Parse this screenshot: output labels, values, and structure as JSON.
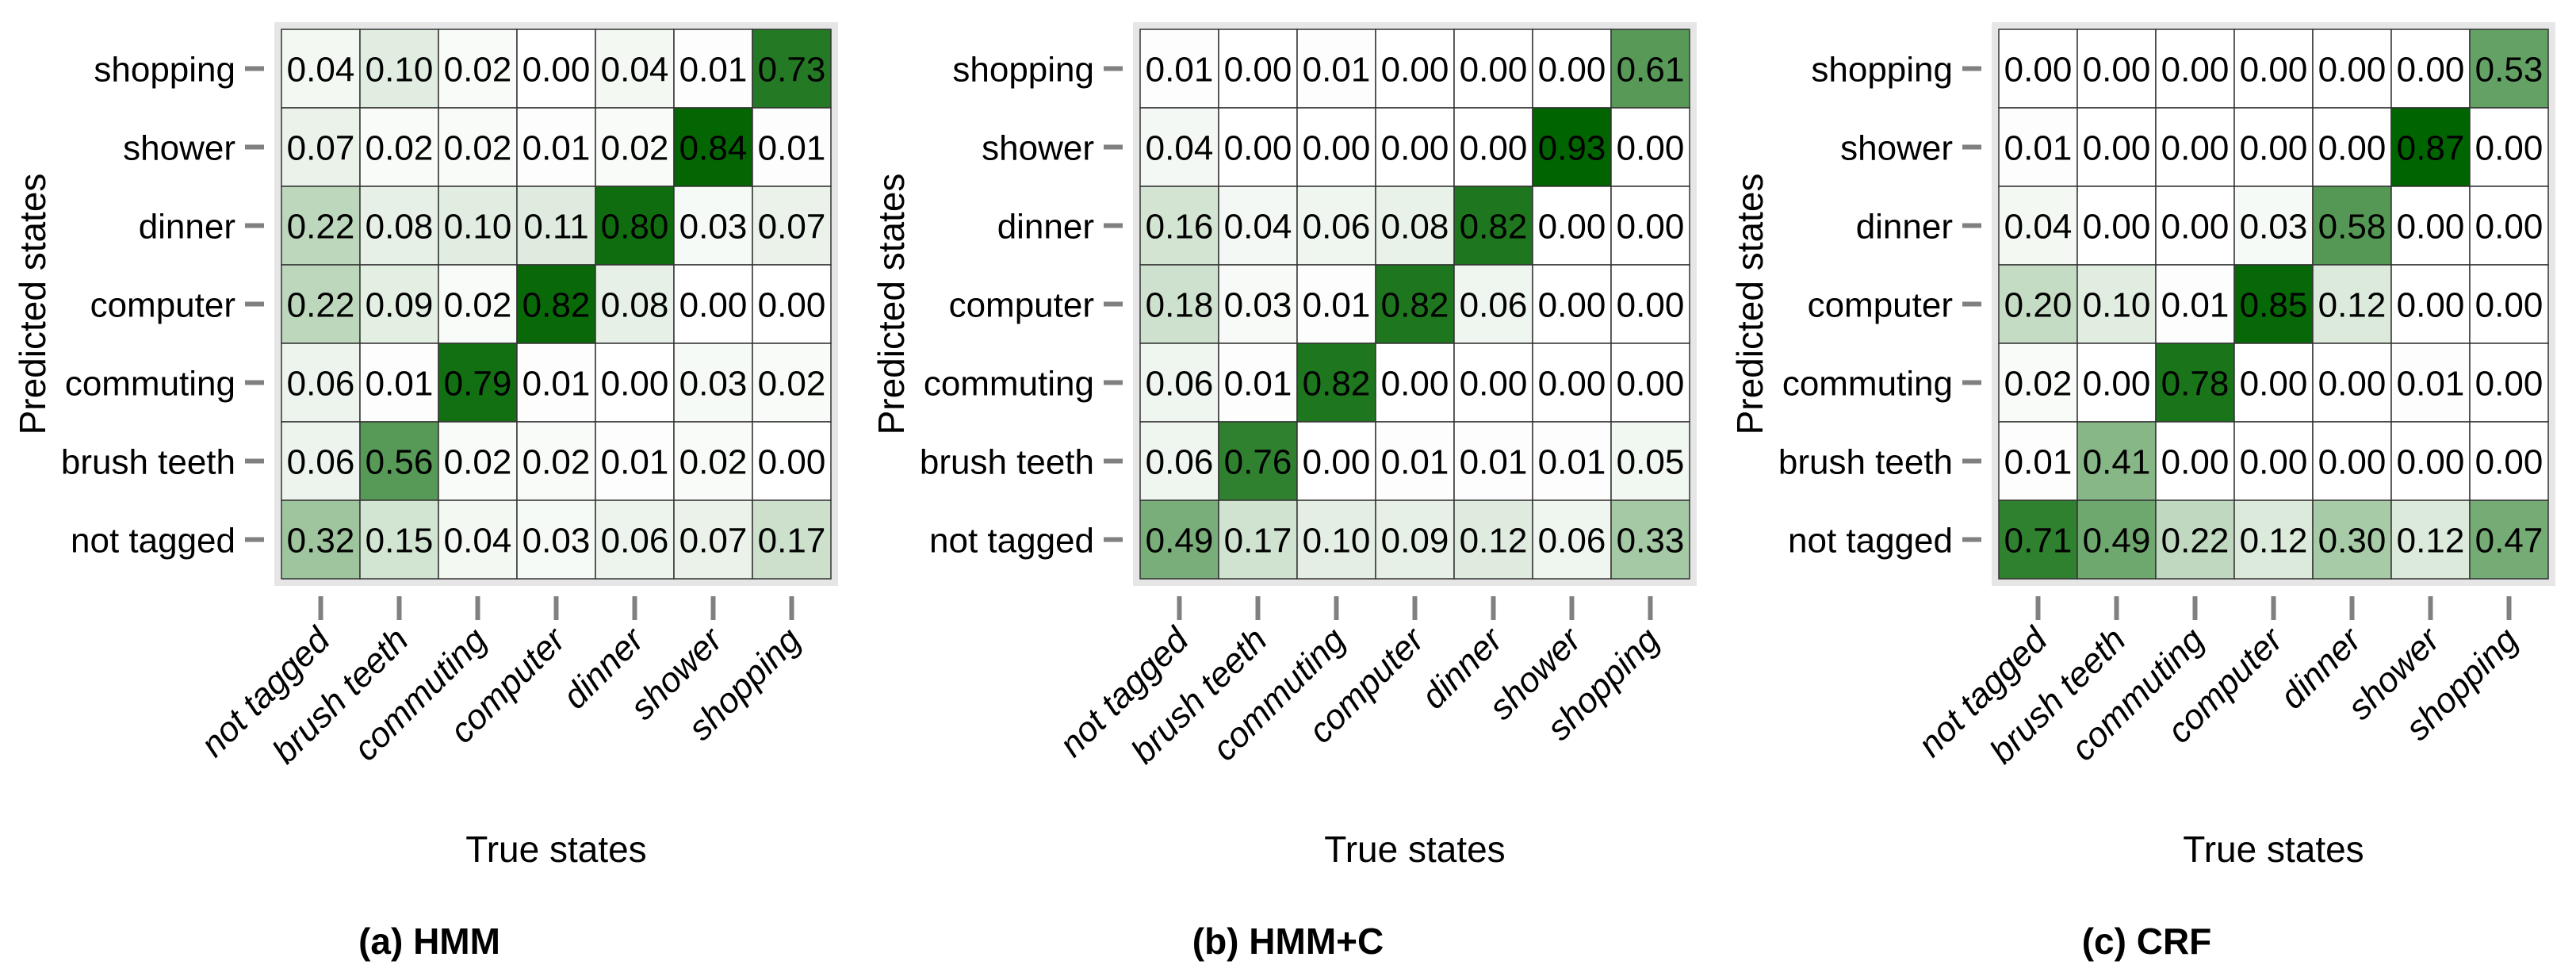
{
  "figure": {
    "captions": [
      "(a) HMM",
      "(b) HMM+C",
      "(c) CRF"
    ]
  },
  "colors": {
    "cell_low": "#ffffff",
    "cell_high": "#006400",
    "frame": "#e6e6e6",
    "grid": "#333333",
    "tick": "#808080"
  },
  "chart_data": [
    {
      "type": "heatmap",
      "title": "(a) HMM",
      "xlabel": "True states",
      "ylabel": "Predicted states",
      "x_categories": [
        "not tagged",
        "brush teeth",
        "commuting",
        "computer",
        "dinner",
        "shower",
        "shopping"
      ],
      "y_categories": [
        "shopping",
        "shower",
        "dinner",
        "computer",
        "commuting",
        "brush teeth",
        "not tagged"
      ],
      "values": [
        [
          0.04,
          0.1,
          0.02,
          0.0,
          0.04,
          0.01,
          0.73
        ],
        [
          0.07,
          0.02,
          0.02,
          0.01,
          0.02,
          0.84,
          0.01
        ],
        [
          0.22,
          0.08,
          0.1,
          0.11,
          0.8,
          0.03,
          0.07
        ],
        [
          0.22,
          0.09,
          0.02,
          0.82,
          0.08,
          0.0,
          0.0
        ],
        [
          0.06,
          0.01,
          0.79,
          0.01,
          0.0,
          0.03,
          0.02
        ],
        [
          0.06,
          0.56,
          0.02,
          0.02,
          0.01,
          0.02,
          0.0
        ],
        [
          0.32,
          0.15,
          0.04,
          0.03,
          0.06,
          0.07,
          0.17
        ]
      ],
      "range": [
        0,
        0.85
      ]
    },
    {
      "type": "heatmap",
      "title": "(b) HMM+C",
      "xlabel": "True states",
      "ylabel": "Predicted states",
      "x_categories": [
        "not tagged",
        "brush teeth",
        "commuting",
        "computer",
        "dinner",
        "shower",
        "shopping"
      ],
      "y_categories": [
        "shopping",
        "shower",
        "dinner",
        "computer",
        "commuting",
        "brush teeth",
        "not tagged"
      ],
      "values": [
        [
          0.01,
          0.0,
          0.01,
          0.0,
          0.0,
          0.0,
          0.61
        ],
        [
          0.04,
          0.0,
          0.0,
          0.0,
          0.0,
          0.93,
          0.0
        ],
        [
          0.16,
          0.04,
          0.06,
          0.08,
          0.82,
          0.0,
          0.0
        ],
        [
          0.18,
          0.03,
          0.01,
          0.82,
          0.06,
          0.0,
          0.0
        ],
        [
          0.06,
          0.01,
          0.82,
          0.0,
          0.0,
          0.0,
          0.0
        ],
        [
          0.06,
          0.76,
          0.0,
          0.01,
          0.01,
          0.01,
          0.05
        ],
        [
          0.49,
          0.17,
          0.1,
          0.09,
          0.12,
          0.06,
          0.33
        ]
      ],
      "range": [
        0,
        0.93
      ]
    },
    {
      "type": "heatmap",
      "title": "(c) CRF",
      "xlabel": "True states",
      "ylabel": "Predicted states",
      "x_categories": [
        "not tagged",
        "brush teeth",
        "commuting",
        "computer",
        "dinner",
        "shower",
        "shopping"
      ],
      "y_categories": [
        "shopping",
        "shower",
        "dinner",
        "computer",
        "commuting",
        "brush teeth",
        "not tagged"
      ],
      "values": [
        [
          0.0,
          0.0,
          0.0,
          0.0,
          0.0,
          0.0,
          0.53
        ],
        [
          0.01,
          0.0,
          0.0,
          0.0,
          0.0,
          0.87,
          0.0
        ],
        [
          0.04,
          0.0,
          0.0,
          0.03,
          0.58,
          0.0,
          0.0
        ],
        [
          0.2,
          0.1,
          0.01,
          0.85,
          0.12,
          0.0,
          0.0
        ],
        [
          0.02,
          0.0,
          0.78,
          0.0,
          0.0,
          0.01,
          0.0
        ],
        [
          0.01,
          0.41,
          0.0,
          0.0,
          0.0,
          0.0,
          0.0
        ],
        [
          0.71,
          0.49,
          0.22,
          0.12,
          0.3,
          0.12,
          0.47
        ]
      ],
      "range": [
        0,
        0.87
      ]
    }
  ]
}
